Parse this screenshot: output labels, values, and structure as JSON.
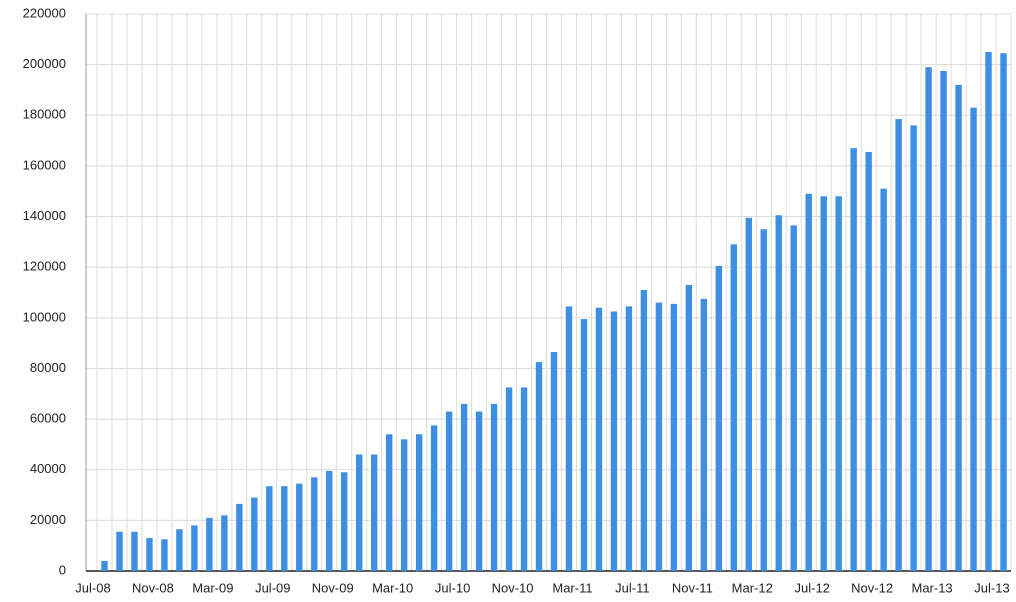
{
  "chart_data": {
    "type": "bar",
    "categories": [
      "Jul-08",
      null,
      null,
      null,
      "Nov-08",
      null,
      null,
      null,
      "Mar-09",
      null,
      null,
      null,
      "Jul-09",
      null,
      null,
      null,
      "Nov-09",
      null,
      null,
      null,
      "Mar-10",
      null,
      null,
      null,
      "Jul-10",
      null,
      null,
      null,
      "Nov-10",
      null,
      null,
      null,
      "Mar-11",
      null,
      null,
      null,
      "Jul-11",
      null,
      null,
      null,
      "Nov-11",
      null,
      null,
      null,
      "Mar-12",
      null,
      null,
      null,
      "Jul-12",
      null,
      null,
      null,
      "Nov-12",
      null,
      null,
      null,
      "Mar-13",
      null,
      null,
      null,
      "Jul-13"
    ],
    "values": [
      4000,
      15500,
      15500,
      13000,
      12500,
      16500,
      18000,
      21000,
      22000,
      26500,
      29000,
      33500,
      33500,
      34500,
      37000,
      39500,
      39000,
      46000,
      46000,
      54000,
      52000,
      54000,
      57500,
      63000,
      66000,
      63000,
      66000,
      72500,
      72500,
      82500,
      86500,
      104500,
      99500,
      104000,
      102500,
      104500,
      111000,
      106000,
      105500,
      113000,
      107500,
      120500,
      129000,
      139500,
      135000,
      140500,
      136500,
      149000,
      148000,
      148000,
      167000,
      165500,
      151000,
      178500,
      176000,
      199000,
      197500,
      192000,
      183000,
      205000,
      204500
    ],
    "color": "#3d8fe3",
    "ylim": [
      0,
      220000
    ],
    "yticks": [
      0,
      20000,
      40000,
      60000,
      80000,
      100000,
      120000,
      140000,
      160000,
      180000,
      200000,
      220000
    ],
    "grid": true
  }
}
